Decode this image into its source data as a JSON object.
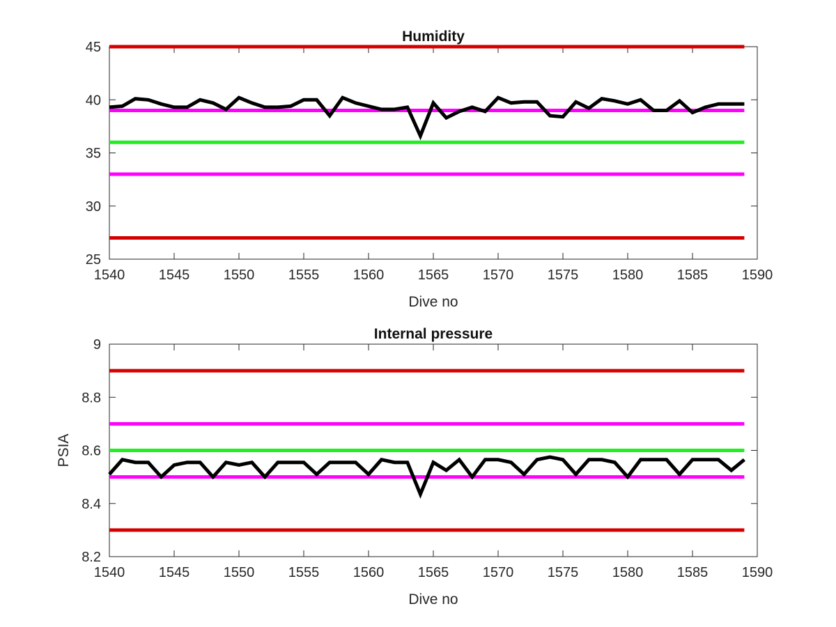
{
  "chart_data": [
    {
      "type": "line",
      "title": "Humidity",
      "xlabel": "Dive no",
      "ylabel": "",
      "xlim": [
        1540,
        1590
      ],
      "ylim": [
        25,
        45
      ],
      "xticks": [
        "1540",
        "1545",
        "1550",
        "1555",
        "1560",
        "1565",
        "1570",
        "1575",
        "1580",
        "1585",
        "1590"
      ],
      "yticks": [
        "25",
        "30",
        "35",
        "40",
        "45"
      ],
      "grid": false,
      "reference_lines": [
        {
          "y": 45,
          "color": "#d40000"
        },
        {
          "y": 27,
          "color": "#d40000"
        },
        {
          "y": 39,
          "color": "#ff00ff"
        },
        {
          "y": 33,
          "color": "#ff00ff"
        },
        {
          "y": 36,
          "color": "#22ee22"
        }
      ],
      "series": [
        {
          "color": "#000000",
          "x": [
            1540,
            1541,
            1542,
            1543,
            1544,
            1545,
            1546,
            1547,
            1548,
            1549,
            1550,
            1551,
            1552,
            1553,
            1554,
            1555,
            1556,
            1557,
            1558,
            1559,
            1560,
            1561,
            1562,
            1563,
            1564,
            1565,
            1566,
            1567,
            1568,
            1569,
            1570,
            1571,
            1572,
            1573,
            1574,
            1575,
            1576,
            1577,
            1578,
            1579,
            1580,
            1581,
            1582,
            1583,
            1584,
            1585,
            1586,
            1587,
            1588,
            1589
          ],
          "y": [
            39.3,
            39.4,
            40.1,
            40.0,
            39.6,
            39.3,
            39.3,
            40.0,
            39.7,
            39.1,
            40.2,
            39.7,
            39.3,
            39.3,
            39.4,
            40.0,
            40.0,
            38.5,
            40.2,
            39.7,
            39.4,
            39.1,
            39.1,
            39.3,
            36.6,
            39.7,
            38.3,
            38.9,
            39.3,
            38.9,
            40.2,
            39.7,
            39.8,
            39.8,
            38.5,
            38.4,
            39.8,
            39.2,
            40.1,
            39.9,
            39.6,
            40.0,
            39.0,
            39.0,
            39.9,
            38.8,
            39.3,
            39.6,
            39.6,
            39.6
          ]
        }
      ]
    },
    {
      "type": "line",
      "title": "Internal pressure",
      "xlabel": "Dive no",
      "ylabel": "PSIA",
      "xlim": [
        1540,
        1590
      ],
      "ylim": [
        8.2,
        9.0
      ],
      "xticks": [
        "1540",
        "1545",
        "1550",
        "1555",
        "1560",
        "1565",
        "1570",
        "1575",
        "1580",
        "1585",
        "1590"
      ],
      "yticks": [
        "8.2",
        "8.4",
        "8.6",
        "8.8",
        "9"
      ],
      "grid": false,
      "reference_lines": [
        {
          "y": 8.9,
          "color": "#d40000"
        },
        {
          "y": 8.3,
          "color": "#d40000"
        },
        {
          "y": 8.7,
          "color": "#ff00ff"
        },
        {
          "y": 8.5,
          "color": "#ff00ff"
        },
        {
          "y": 8.6,
          "color": "#22ee22"
        }
      ],
      "series": [
        {
          "color": "#000000",
          "x": [
            1540,
            1541,
            1542,
            1543,
            1544,
            1545,
            1546,
            1547,
            1548,
            1549,
            1550,
            1551,
            1552,
            1553,
            1554,
            1555,
            1556,
            1557,
            1558,
            1559,
            1560,
            1561,
            1562,
            1563,
            1564,
            1565,
            1566,
            1567,
            1568,
            1569,
            1570,
            1571,
            1572,
            1573,
            1574,
            1575,
            1576,
            1577,
            1578,
            1579,
            1580,
            1581,
            1582,
            1583,
            1584,
            1585,
            1586,
            1587,
            1588,
            1589
          ],
          "y": [
            8.51,
            8.565,
            8.555,
            8.555,
            8.5,
            8.545,
            8.555,
            8.555,
            8.5,
            8.555,
            8.545,
            8.555,
            8.5,
            8.555,
            8.555,
            8.555,
            8.51,
            8.555,
            8.555,
            8.555,
            8.51,
            8.565,
            8.555,
            8.555,
            8.435,
            8.555,
            8.525,
            8.565,
            8.5,
            8.565,
            8.565,
            8.555,
            8.51,
            8.565,
            8.575,
            8.565,
            8.51,
            8.565,
            8.565,
            8.555,
            8.5,
            8.565,
            8.565,
            8.565,
            8.51,
            8.565,
            8.565,
            8.565,
            8.525,
            8.565
          ]
        }
      ]
    }
  ]
}
